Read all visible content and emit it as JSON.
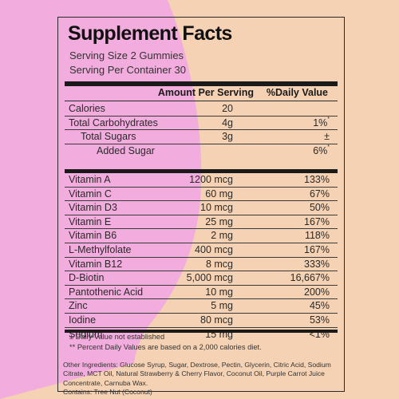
{
  "title": "Supplement Facts",
  "serving_size": "Serving Size 2 Gummies",
  "servings_per_container": "Serving Per Container 30",
  "columns": {
    "amount": "Amount Per Serving",
    "daily_value": "%Daily Value"
  },
  "group_a": [
    {
      "name": "Calories",
      "amount": "20",
      "dv": "",
      "mark": ""
    },
    {
      "name": "Total Carbohydrates",
      "amount": "4g",
      "dv": "1%",
      "mark": "*"
    },
    {
      "name": "Total Sugars",
      "amount": "3g",
      "dv": "±",
      "mark": ""
    },
    {
      "name": "Added Sugar",
      "amount": "",
      "dv": "6%",
      "mark": "*"
    }
  ],
  "group_b": [
    {
      "name": "Vitamin A",
      "amount": "1200 mcg",
      "dv": "133%"
    },
    {
      "name": "Vitamin C",
      "amount": "60 mg",
      "dv": "67%"
    },
    {
      "name": "Vitamin D3",
      "amount": "10 mcg",
      "dv": "50%"
    },
    {
      "name": "Vitamin E",
      "amount": "25 mg",
      "dv": "167%"
    },
    {
      "name": "Vitamin B6",
      "amount": "2 mg",
      "dv": "118%"
    },
    {
      "name": "L-Methylfolate",
      "amount": "400 mcg",
      "dv": "167%"
    },
    {
      "name": "Vitamin B12",
      "amount": "8 mcg",
      "dv": "333%"
    },
    {
      "name": "D-Biotin",
      "amount": "5,000 mcg",
      "dv": "16,667%"
    },
    {
      "name": "Pantothenic Acid",
      "amount": "10 mg",
      "dv": "200%"
    },
    {
      "name": "Zinc",
      "amount": "5 mg",
      "dv": "45%"
    },
    {
      "name": "Iodine",
      "amount": "80 mcg",
      "dv": "53%"
    },
    {
      "name": "Sodium",
      "amount": "15 mg",
      "dv": "<1%"
    }
  ],
  "footnotes": [
    "± Daily Value not established",
    "** Percent Daily Values are based on a 2,000 calories diet."
  ],
  "other_ingredients": "Other Ingredients: Glucose Syrup, Sugar, Dextrose, Pectin, Glycerin, Citric Acid, Sodium Citrate, MCT Oil, Natural Strawberry & Cherry Flavor, Coconut Oil, Purple Carrot Juice Concentrate, Carnuba Wax.",
  "contains": "Contains: Tree Nut (Coconut)",
  "colors": {
    "pink": "#f2acdd",
    "peach": "#f5d2b3",
    "ink": "#1a1a1a"
  }
}
